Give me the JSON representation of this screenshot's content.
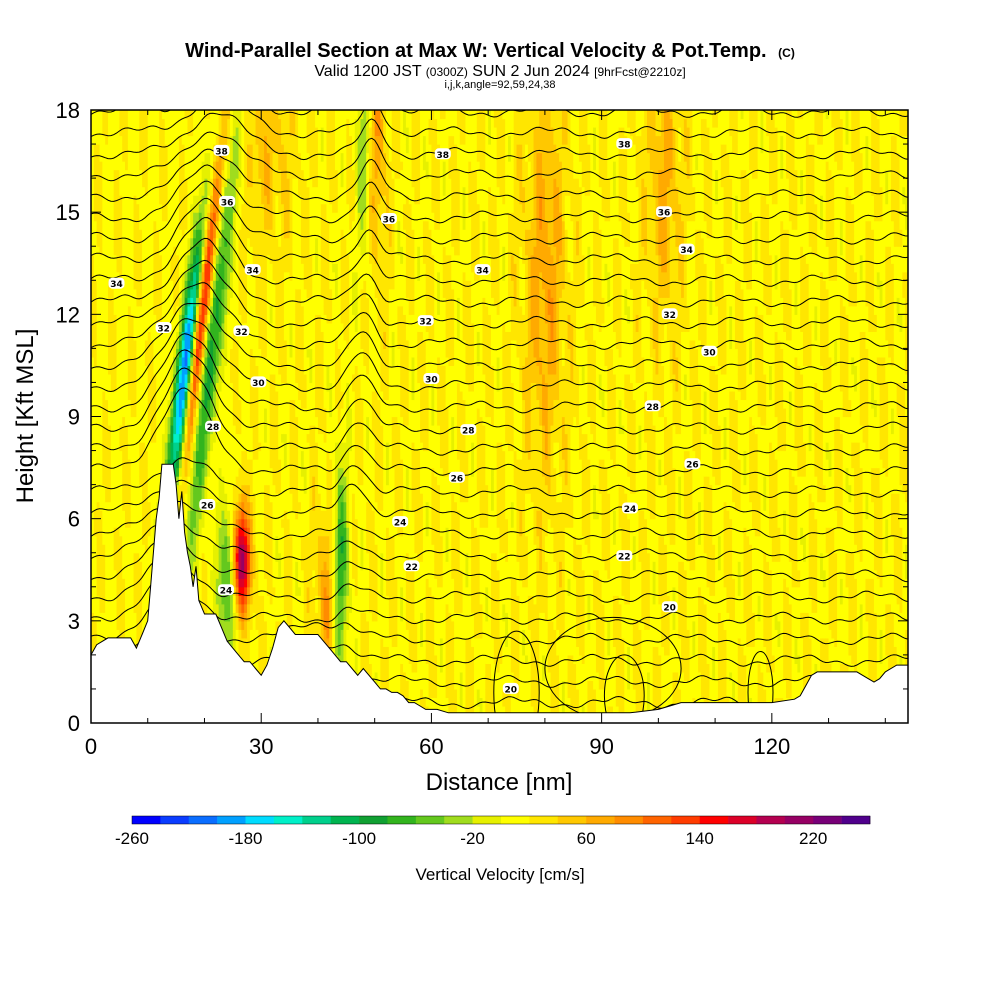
{
  "chart_data": {
    "type": "heatmap",
    "title": "Wind-Parallel Section at Max W: Vertical Velocity & Pot.Temp.",
    "title_suffix": "(C)",
    "subtitle_parts": [
      "Valid 1200 JST ",
      "(0300Z)",
      " SUN 2 Jun 2024 ",
      "[9hrFcst@2210z]"
    ],
    "subtitle2": "i,j,k,angle=92,59,24,38",
    "xlabel": "Distance [nm]",
    "ylabel": "Height [Kft MSL]",
    "xlim": [
      0,
      144
    ],
    "ylim": [
      0,
      18
    ],
    "x_ticks": [
      "0",
      "30",
      "60",
      "90",
      "120"
    ],
    "y_ticks": [
      "0",
      "3",
      "6",
      "9",
      "12",
      "15",
      "18"
    ],
    "colorbar": {
      "label": "Vertical Velocity [cm/s]",
      "tick_labels": [
        "-260",
        "-180",
        "-100",
        "-20",
        "60",
        "140",
        "220"
      ],
      "tick_values": [
        -260,
        -180,
        -100,
        -20,
        60,
        140,
        220
      ],
      "min": -260,
      "max": 260,
      "colors": [
        "#0000ff",
        "#0a3cff",
        "#0a6eff",
        "#00a0ff",
        "#00dcff",
        "#00f0c8",
        "#00d08c",
        "#00b450",
        "#10a032",
        "#32b41e",
        "#64c81e",
        "#a0dc1e",
        "#e6f000",
        "#ffff00",
        "#ffe600",
        "#ffc800",
        "#ffaa00",
        "#ff8c00",
        "#ff6400",
        "#ff3c00",
        "#ff0000",
        "#dc0028",
        "#b40050",
        "#960064",
        "#780078",
        "#50008c"
      ]
    },
    "contour_labels": [
      {
        "text": "38",
        "x": 23,
        "y": 16.8
      },
      {
        "text": "36",
        "x": 24,
        "y": 15.3
      },
      {
        "text": "34",
        "x": 28.5,
        "y": 13.3
      },
      {
        "text": "34",
        "x": 4.5,
        "y": 12.9
      },
      {
        "text": "32",
        "x": 12.8,
        "y": 11.6
      },
      {
        "text": "32",
        "x": 26.5,
        "y": 11.5
      },
      {
        "text": "30",
        "x": 29.5,
        "y": 10.0
      },
      {
        "text": "28",
        "x": 21.5,
        "y": 8.7
      },
      {
        "text": "26",
        "x": 20.5,
        "y": 6.4
      },
      {
        "text": "24",
        "x": 23.8,
        "y": 3.9
      },
      {
        "text": "38",
        "x": 62,
        "y": 16.7
      },
      {
        "text": "36",
        "x": 52.5,
        "y": 14.8
      },
      {
        "text": "34",
        "x": 69,
        "y": 13.3
      },
      {
        "text": "32",
        "x": 59,
        "y": 11.8
      },
      {
        "text": "30",
        "x": 60,
        "y": 10.1
      },
      {
        "text": "28",
        "x": 66.5,
        "y": 8.6
      },
      {
        "text": "26",
        "x": 64.5,
        "y": 7.2
      },
      {
        "text": "24",
        "x": 54.5,
        "y": 5.9
      },
      {
        "text": "22",
        "x": 56.5,
        "y": 4.6
      },
      {
        "text": "20",
        "x": 74,
        "y": 1.0
      },
      {
        "text": "38",
        "x": 94,
        "y": 17.0
      },
      {
        "text": "36",
        "x": 101,
        "y": 15.0
      },
      {
        "text": "34",
        "x": 105,
        "y": 13.9
      },
      {
        "text": "32",
        "x": 102,
        "y": 12.0
      },
      {
        "text": "30",
        "x": 109,
        "y": 10.9
      },
      {
        "text": "28",
        "x": 99,
        "y": 9.3
      },
      {
        "text": "26",
        "x": 106,
        "y": 7.6
      },
      {
        "text": "24",
        "x": 95,
        "y": 6.3
      },
      {
        "text": "22",
        "x": 94,
        "y": 4.9
      },
      {
        "text": "20",
        "x": 102,
        "y": 3.4
      }
    ],
    "terrain": [
      [
        0,
        2
      ],
      [
        1,
        2.3
      ],
      [
        3,
        2.5
      ],
      [
        7,
        2.5
      ],
      [
        8,
        2.2
      ],
      [
        9,
        2.6
      ],
      [
        10,
        3.0
      ],
      [
        10.5,
        4.0
      ],
      [
        11,
        5.0
      ],
      [
        11.5,
        6.0
      ],
      [
        12,
        6.6
      ],
      [
        12.5,
        7.6
      ],
      [
        14.5,
        7.6
      ],
      [
        15,
        7.0
      ],
      [
        15.5,
        6.0
      ],
      [
        16,
        6.8
      ],
      [
        16.5,
        5.6
      ],
      [
        17,
        5.0
      ],
      [
        17.5,
        4.6
      ],
      [
        18,
        4.0
      ],
      [
        18.5,
        4.6
      ],
      [
        19,
        3.6
      ],
      [
        20,
        3.2
      ],
      [
        21,
        3.2
      ],
      [
        22,
        3.2
      ],
      [
        23,
        2.8
      ],
      [
        24,
        2.4
      ],
      [
        25,
        2.2
      ],
      [
        26,
        2.0
      ],
      [
        27,
        1.8
      ],
      [
        28,
        1.8
      ],
      [
        29,
        1.6
      ],
      [
        30,
        1.4
      ],
      [
        31,
        1.7
      ],
      [
        32,
        2.2
      ],
      [
        33,
        2.8
      ],
      [
        34,
        3.0
      ],
      [
        35,
        2.8
      ],
      [
        36,
        2.6
      ],
      [
        38,
        2.6
      ],
      [
        40,
        2.6
      ],
      [
        41,
        2.4
      ],
      [
        42,
        2.2
      ],
      [
        43,
        2.0
      ],
      [
        44,
        1.8
      ],
      [
        45,
        1.8
      ],
      [
        46,
        1.6
      ],
      [
        47,
        1.4
      ],
      [
        48,
        1.6
      ],
      [
        49,
        1.4
      ],
      [
        50,
        1.2
      ],
      [
        51,
        1.0
      ],
      [
        52,
        1.0
      ],
      [
        53,
        0.9
      ],
      [
        54,
        0.9
      ],
      [
        55,
        0.8
      ],
      [
        56,
        0.6
      ],
      [
        57,
        0.6
      ],
      [
        58,
        0.5
      ],
      [
        59,
        0.4
      ],
      [
        61,
        0.4
      ],
      [
        63,
        0.3
      ],
      [
        66,
        0.3
      ],
      [
        70,
        0.3
      ],
      [
        75,
        0.3
      ],
      [
        80,
        0.3
      ],
      [
        85,
        0.3
      ],
      [
        90,
        0.3
      ],
      [
        95,
        0.3
      ],
      [
        100,
        0.4
      ],
      [
        104,
        0.6
      ],
      [
        108,
        0.6
      ],
      [
        112,
        0.6
      ],
      [
        116,
        0.6
      ],
      [
        120,
        0.6
      ],
      [
        124,
        0.7
      ],
      [
        125,
        0.8
      ],
      [
        126,
        1.1
      ],
      [
        127,
        1.4
      ],
      [
        128,
        1.5
      ],
      [
        132,
        1.5
      ],
      [
        135,
        1.5
      ],
      [
        136,
        1.4
      ],
      [
        137,
        1.3
      ],
      [
        138,
        1.2
      ],
      [
        139,
        1.3
      ],
      [
        140,
        1.5
      ],
      [
        142,
        1.7
      ],
      [
        144,
        1.7
      ]
    ]
  }
}
